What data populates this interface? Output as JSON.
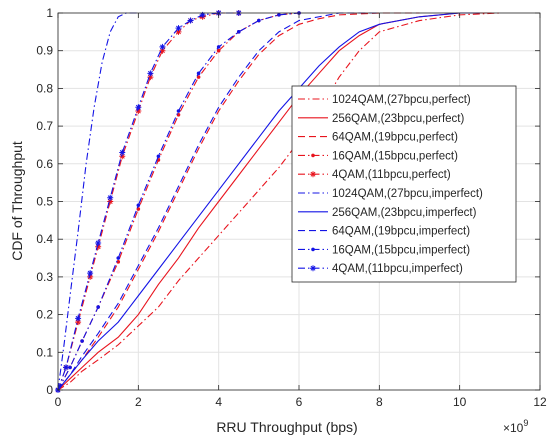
{
  "chart_data": {
    "type": "line",
    "title": "",
    "xlabel": "RRU Throughput (bps)",
    "ylabel": "CDF of Throughput",
    "x_exponent_label": "×10",
    "x_exponent_power": "9",
    "xlim": [
      0,
      12
    ],
    "ylim": [
      0,
      1
    ],
    "x_ticks": [
      0,
      2,
      4,
      6,
      8,
      10,
      12
    ],
    "y_ticks": [
      0,
      0.1,
      0.2,
      0.3,
      0.4,
      0.5,
      0.6,
      0.7,
      0.8,
      0.9,
      1
    ],
    "x_tick_labels": [
      "0",
      "2",
      "4",
      "6",
      "8",
      "10",
      "12"
    ],
    "y_tick_labels": [
      "0",
      "0.1",
      "0.2",
      "0.3",
      "0.4",
      "0.5",
      "0.6",
      "0.7",
      "0.8",
      "0.9",
      "1"
    ],
    "grid": true,
    "legend_position": "right",
    "series": [
      {
        "name": "1024QAM,(27bpcu,perfect)",
        "color": "#e8141e",
        "dash": "dashdot",
        "marker": "none",
        "x": [
          0,
          0.3,
          0.6,
          1.0,
          1.5,
          2.0,
          2.5,
          3.0,
          3.5,
          4.0,
          4.5,
          5.0,
          5.5,
          6.0,
          6.5,
          7.0,
          7.5,
          8.0,
          9.0,
          10.0,
          11.0
        ],
        "y": [
          0,
          0.02,
          0.05,
          0.08,
          0.12,
          0.17,
          0.22,
          0.29,
          0.35,
          0.41,
          0.47,
          0.53,
          0.59,
          0.66,
          0.74,
          0.83,
          0.9,
          0.95,
          0.98,
          0.995,
          1.0
        ]
      },
      {
        "name": "256QAM,(23bpcu,perfect)",
        "color": "#e8141e",
        "dash": "solid",
        "marker": "none",
        "x": [
          0,
          0.3,
          0.6,
          1.0,
          1.5,
          2.0,
          2.5,
          3.0,
          3.5,
          4.0,
          4.5,
          5.0,
          5.5,
          6.0,
          6.5,
          7.0,
          7.5,
          8.0,
          9.0,
          10.0,
          10.8
        ],
        "y": [
          0,
          0.03,
          0.06,
          0.1,
          0.14,
          0.2,
          0.28,
          0.35,
          0.43,
          0.5,
          0.57,
          0.64,
          0.71,
          0.78,
          0.84,
          0.9,
          0.94,
          0.97,
          0.99,
          1.0,
          1.0
        ]
      },
      {
        "name": "64QAM,(19bpcu,perfect)",
        "color": "#e8141e",
        "dash": "dash",
        "marker": "none",
        "x": [
          0,
          0.3,
          0.6,
          1.0,
          1.5,
          2.0,
          2.5,
          3.0,
          3.5,
          4.0,
          4.5,
          5.0,
          5.5,
          6.0,
          6.5,
          7.0,
          8.0,
          9.0
        ],
        "y": [
          0,
          0.04,
          0.08,
          0.14,
          0.22,
          0.32,
          0.42,
          0.53,
          0.64,
          0.74,
          0.82,
          0.89,
          0.94,
          0.97,
          0.985,
          0.995,
          1.0,
          1.0
        ]
      },
      {
        "name": "16QAM,(15bpcu,perfect)",
        "color": "#e8141e",
        "dash": "dashdot",
        "marker": "dot",
        "x": [
          0,
          0.3,
          0.6,
          1.0,
          1.5,
          2.0,
          2.5,
          3.0,
          3.5,
          4.0,
          4.5,
          5.0,
          5.5,
          6.0
        ],
        "y": [
          0,
          0.06,
          0.13,
          0.22,
          0.34,
          0.48,
          0.61,
          0.73,
          0.83,
          0.9,
          0.95,
          0.98,
          0.995,
          1.0
        ]
      },
      {
        "name": "4QAM,(11bpcu,perfect)",
        "color": "#e8141e",
        "dash": "dashdot",
        "marker": "asterisk",
        "x": [
          0,
          0.2,
          0.5,
          0.8,
          1.0,
          1.3,
          1.6,
          2.0,
          2.3,
          2.6,
          3.0,
          3.3,
          3.6,
          4.0,
          4.5
        ],
        "y": [
          0,
          0.06,
          0.18,
          0.3,
          0.38,
          0.5,
          0.62,
          0.74,
          0.83,
          0.9,
          0.95,
          0.98,
          0.99,
          1.0,
          1.0
        ]
      },
      {
        "name": "1024QAM,(27bpcu,imperfect)",
        "color": "#1414e6",
        "dash": "dashdot",
        "marker": "none",
        "x": [
          0,
          0.15,
          0.3,
          0.5,
          0.7,
          0.9,
          1.1,
          1.3,
          1.5,
          1.7,
          2.0
        ],
        "y": [
          0,
          0.12,
          0.25,
          0.42,
          0.6,
          0.75,
          0.87,
          0.95,
          0.99,
          1.0,
          1.0
        ]
      },
      {
        "name": "256QAM,(23bpcu,imperfect)",
        "color": "#1414e6",
        "dash": "solid",
        "marker": "none",
        "x": [
          0,
          0.3,
          0.6,
          1.0,
          1.5,
          2.0,
          2.5,
          3.0,
          3.5,
          4.0,
          4.5,
          5.0,
          5.5,
          6.0,
          6.5,
          7.0,
          7.5,
          8.0,
          9.0,
          10.0,
          10.5
        ],
        "y": [
          0,
          0.04,
          0.08,
          0.13,
          0.18,
          0.25,
          0.32,
          0.39,
          0.46,
          0.53,
          0.6,
          0.67,
          0.74,
          0.8,
          0.86,
          0.91,
          0.95,
          0.97,
          0.99,
          1.0,
          1.0
        ]
      },
      {
        "name": "64QAM,(19bpcu,imperfect)",
        "color": "#1414e6",
        "dash": "dash",
        "marker": "none",
        "x": [
          0,
          0.3,
          0.6,
          1.0,
          1.5,
          2.0,
          2.5,
          3.0,
          3.5,
          4.0,
          4.5,
          5.0,
          5.5,
          6.0,
          6.5,
          7.0,
          8.0
        ],
        "y": [
          0,
          0.04,
          0.09,
          0.15,
          0.23,
          0.33,
          0.43,
          0.54,
          0.65,
          0.75,
          0.83,
          0.9,
          0.95,
          0.98,
          0.99,
          1.0,
          1.0
        ]
      },
      {
        "name": "16QAM,(15bpcu,imperfect)",
        "color": "#1414e6",
        "dash": "dashdot",
        "marker": "dot",
        "x": [
          0,
          0.3,
          0.6,
          1.0,
          1.5,
          2.0,
          2.5,
          3.0,
          3.5,
          4.0,
          4.5,
          5.0,
          5.5,
          6.0
        ],
        "y": [
          0,
          0.06,
          0.13,
          0.22,
          0.35,
          0.49,
          0.62,
          0.74,
          0.84,
          0.91,
          0.95,
          0.98,
          0.995,
          1.0
        ]
      },
      {
        "name": "4QAM,(11bpcu,imperfect)",
        "color": "#1414e6",
        "dash": "dashdot",
        "marker": "asterisk",
        "x": [
          0,
          0.2,
          0.5,
          0.8,
          1.0,
          1.3,
          1.6,
          2.0,
          2.3,
          2.6,
          3.0,
          3.3,
          3.6,
          4.0,
          4.5
        ],
        "y": [
          0,
          0.06,
          0.19,
          0.31,
          0.39,
          0.51,
          0.63,
          0.75,
          0.84,
          0.91,
          0.96,
          0.98,
          0.995,
          1.0,
          1.0
        ]
      }
    ]
  }
}
